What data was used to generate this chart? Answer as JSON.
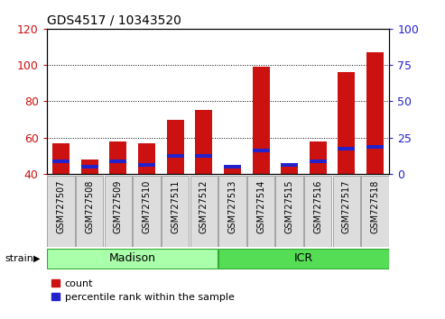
{
  "title": "GDS4517 / 10343520",
  "samples": [
    "GSM727507",
    "GSM727508",
    "GSM727509",
    "GSM727510",
    "GSM727511",
    "GSM727512",
    "GSM727513",
    "GSM727514",
    "GSM727515",
    "GSM727516",
    "GSM727517",
    "GSM727518"
  ],
  "count_values": [
    57,
    48,
    58,
    57,
    70,
    75,
    44,
    99,
    44,
    58,
    96,
    107
  ],
  "percentile_bottom": [
    46,
    43,
    46,
    44,
    49,
    49,
    43,
    52,
    44,
    46,
    53,
    54
  ],
  "percentile_top": [
    48,
    45,
    48,
    46,
    51,
    51,
    45,
    54,
    46,
    48,
    55,
    56
  ],
  "ymin": 40,
  "ymax": 120,
  "y2min": 0,
  "y2max": 100,
  "yticks_left": [
    40,
    60,
    80,
    100,
    120
  ],
  "yticks_right": [
    0,
    25,
    50,
    75,
    100
  ],
  "bar_color": "#cc1111",
  "pct_color": "#2222cc",
  "plot_bg": "#ffffff",
  "grid_color": "#000000",
  "madison_label": "Madison",
  "icr_label": "ICR",
  "strain_label": "strain",
  "legend_count": "count",
  "legend_pct": "percentile rank within the sample",
  "madison_color": "#aaffaa",
  "icr_color": "#55dd55"
}
